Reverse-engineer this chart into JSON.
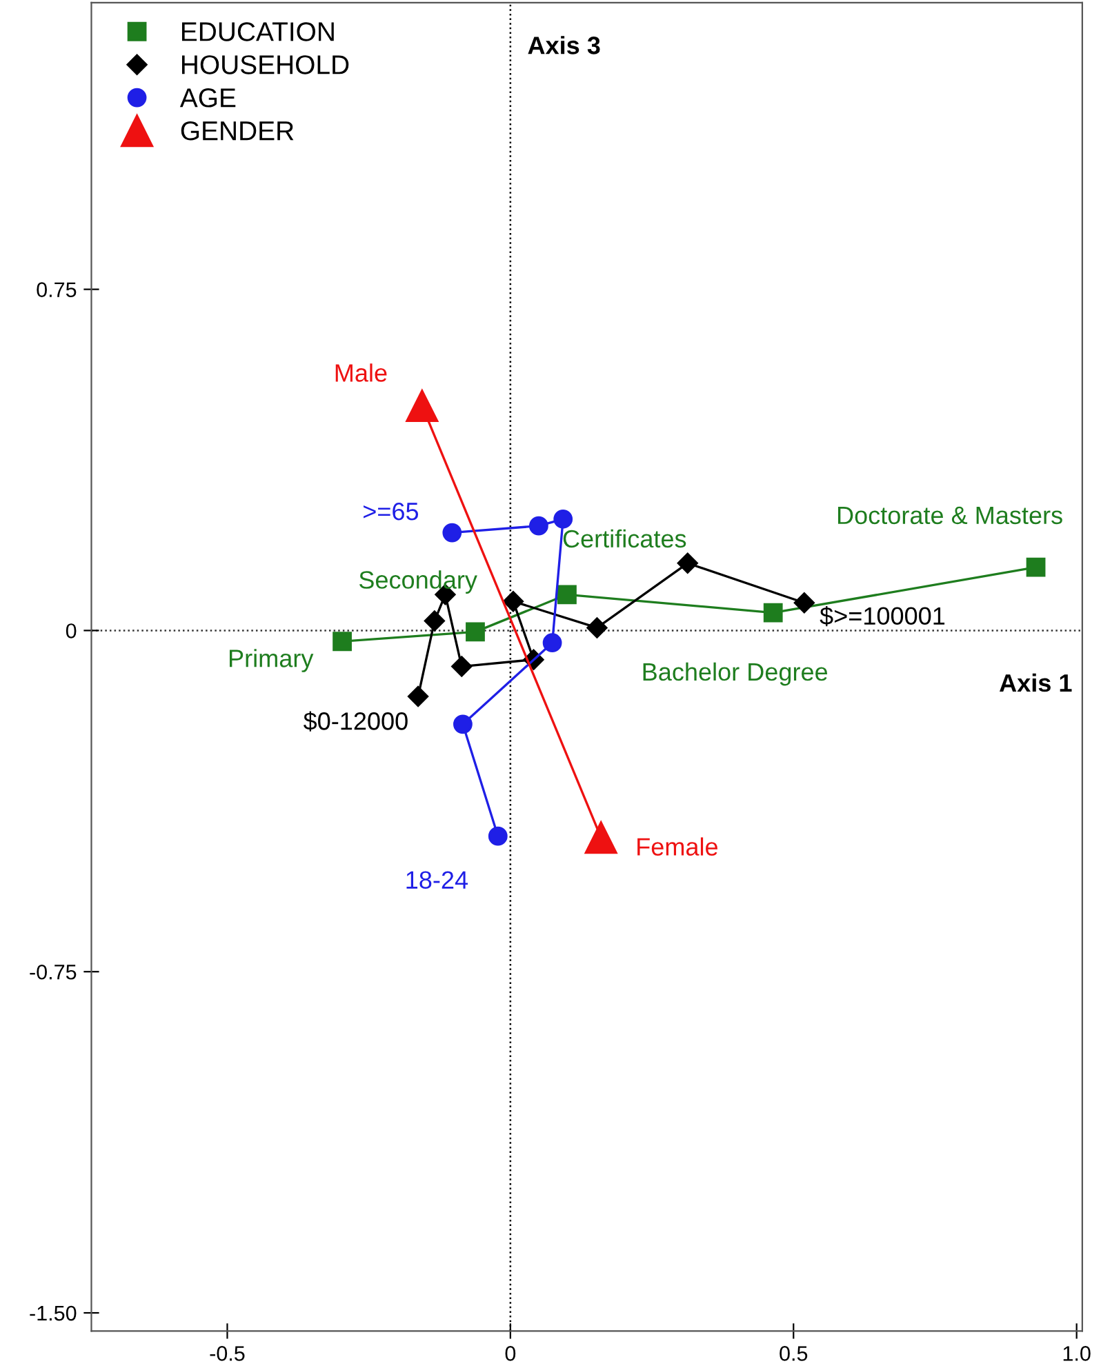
{
  "chart_data": {
    "type": "line",
    "xlabel": "Axis 1",
    "ylabel": "Axis 3",
    "series": [
      {
        "name": "EDUCATION",
        "color": "#1e7d1e",
        "marker": "square",
        "x": [
          -0.297,
          -0.062,
          0.1,
          0.464,
          0.928
        ],
        "values": [
          -0.024,
          -0.003,
          0.079,
          0.039,
          0.139
        ]
      },
      {
        "name": "HOUSEHOLD",
        "color": "#000000",
        "marker": "diamond",
        "x": [
          -0.163,
          -0.134,
          -0.115,
          -0.086,
          0.041,
          0.005,
          0.153,
          0.313,
          0.519
        ],
        "values": [
          -0.145,
          0.021,
          0.079,
          -0.079,
          -0.064,
          0.064,
          0.006,
          0.148,
          0.061
        ]
      },
      {
        "name": "AGE",
        "color": "#1f1fe6",
        "marker": "circle",
        "x": [
          -0.022,
          -0.084,
          0.074,
          0.093,
          0.05,
          -0.103
        ],
        "values": [
          -0.452,
          -0.206,
          -0.027,
          0.245,
          0.23,
          0.215
        ]
      },
      {
        "name": "GENDER",
        "color": "#ee1111",
        "marker": "triangle",
        "x": [
          -0.156,
          0.16
        ],
        "values": [
          0.494,
          -0.455
        ]
      }
    ],
    "annotations": [
      {
        "text": "Primary",
        "x": -0.297,
        "y": -0.024
      },
      {
        "text": "Secondary",
        "x": -0.062,
        "y": -0.003
      },
      {
        "text": "Certificates",
        "x": 0.1,
        "y": 0.079
      },
      {
        "text": "Bachelor Degree",
        "x": 0.464,
        "y": 0.039
      },
      {
        "text": "Doctorate & Masters",
        "x": 0.928,
        "y": 0.139
      },
      {
        "text": "$0-12000",
        "x": -0.163,
        "y": -0.145
      },
      {
        "text": "$>=100001",
        "x": 0.519,
        "y": 0.061
      },
      {
        "text": ">=65",
        "x": -0.103,
        "y": 0.215
      },
      {
        "text": "18-24",
        "x": -0.022,
        "y": -0.452
      },
      {
        "text": "Male",
        "x": -0.156,
        "y": 0.494
      },
      {
        "text": "Female",
        "x": 0.16,
        "y": -0.455
      }
    ],
    "ref_lines": [
      {
        "axis": "x",
        "value": 0,
        "color": "#000000",
        "line_style": "dotted"
      },
      {
        "axis": "y",
        "value": 0,
        "color": "#333333",
        "line_style": "dotted"
      }
    ],
    "xlim": [
      -0.74,
      1.01
    ],
    "ylim": [
      -1.54,
      1.38
    ],
    "xticks": [
      -0.5,
      0,
      0.5,
      {
        "value": 1.0,
        "label": "1.0"
      }
    ],
    "yticks": [
      0.75,
      0,
      -0.75,
      {
        "value": -1.5,
        "label": "-1.50"
      }
    ],
    "grid": false,
    "legend": "top left"
  }
}
